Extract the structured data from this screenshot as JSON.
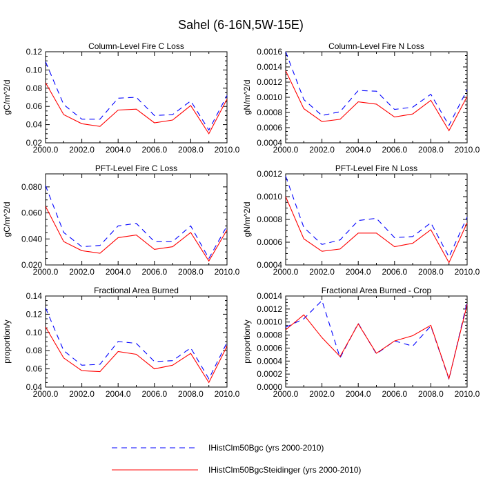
{
  "figure": {
    "title": "Sahel (6-16N,5W-15E)"
  },
  "series_styles": [
    {
      "key": "bgc",
      "color": "#0000ff",
      "dash": "8,6"
    },
    {
      "key": "steid",
      "color": "#ff0000",
      "dash": ""
    }
  ],
  "legend": {
    "items": [
      {
        "label": "IHistClm50Bgc (yrs 2000-2010)",
        "color": "#0000ff",
        "style": "dashed"
      },
      {
        "label": "IHistClm50BgcSteidinger (yrs 2000-2010)",
        "color": "#ff0000",
        "style": "solid"
      }
    ]
  },
  "chart_data": [
    {
      "type": "line",
      "title": "Column-Level Fire C Loss",
      "ylabel": "gC/m^2/d",
      "xlim": [
        2000,
        2010
      ],
      "ylim": [
        0.02,
        0.12
      ],
      "xticks": [
        2000,
        2002,
        2004,
        2006,
        2008,
        2010
      ],
      "xtick_labels": [
        "2000.0",
        "2002.0",
        "2004.0",
        "2006.0",
        "2008.0",
        "2010.0"
      ],
      "yticks": [
        0.02,
        0.04,
        0.06,
        0.08,
        0.1,
        0.12
      ],
      "ytick_labels": [
        "0.02",
        "0.04",
        "0.06",
        "0.08",
        "0.10",
        "0.12"
      ],
      "x": [
        2000,
        2001,
        2002,
        2003,
        2004,
        2005,
        2006,
        2007,
        2008,
        2009,
        2010
      ],
      "series": [
        {
          "values": [
            0.109,
            0.062,
            0.046,
            0.046,
            0.069,
            0.07,
            0.05,
            0.051,
            0.066,
            0.034,
            0.072
          ]
        },
        {
          "values": [
            0.086,
            0.051,
            0.041,
            0.038,
            0.056,
            0.057,
            0.042,
            0.045,
            0.061,
            0.03,
            0.068
          ]
        }
      ]
    },
    {
      "type": "line",
      "title": "Column-Level Fire N Loss",
      "ylabel": "gN/m^2/d",
      "xlim": [
        2000,
        2010
      ],
      "ylim": [
        0.0004,
        0.0016
      ],
      "xticks": [
        2000,
        2002,
        2004,
        2006,
        2008,
        2010
      ],
      "xtick_labels": [
        "2000.0",
        "2002.0",
        "2004.0",
        "2006.0",
        "2008.0",
        "2010.0"
      ],
      "yticks": [
        0.0004,
        0.0006,
        0.0008,
        0.001,
        0.0012,
        0.0014,
        0.0016
      ],
      "ytick_labels": [
        "0.0004",
        "0.0006",
        "0.0008",
        "0.0010",
        "0.0012",
        "0.0014",
        "0.0016"
      ],
      "x": [
        2000,
        2001,
        2002,
        2003,
        2004,
        2005,
        2006,
        2007,
        2008,
        2009,
        2010
      ],
      "series": [
        {
          "values": [
            0.0016,
            0.00097,
            0.00076,
            0.00081,
            0.00109,
            0.00108,
            0.00084,
            0.00087,
            0.00104,
            0.00063,
            0.0011
          ]
        },
        {
          "values": [
            0.00135,
            0.00085,
            0.00068,
            0.00071,
            0.00094,
            0.00091,
            0.00074,
            0.00078,
            0.00096,
            0.00056,
            0.00101
          ]
        }
      ]
    },
    {
      "type": "line",
      "title": "PFT-Level Fire C Loss",
      "ylabel": "gC/m^2/d",
      "xlim": [
        2000,
        2010
      ],
      "ylim": [
        0.02,
        0.09
      ],
      "xticks": [
        2000,
        2002,
        2004,
        2006,
        2008,
        2010
      ],
      "xtick_labels": [
        "2000.0",
        "2002.0",
        "2004.0",
        "2006.0",
        "2008.0",
        "2010.0"
      ],
      "yticks": [
        0.02,
        0.04,
        0.06,
        0.08
      ],
      "ytick_labels": [
        "0.020",
        "0.040",
        "0.060",
        "0.080"
      ],
      "x": [
        2000,
        2001,
        2002,
        2003,
        2004,
        2005,
        2006,
        2007,
        2008,
        2009,
        2010
      ],
      "series": [
        {
          "values": [
            0.081,
            0.045,
            0.034,
            0.035,
            0.05,
            0.052,
            0.038,
            0.038,
            0.05,
            0.025,
            0.05
          ]
        },
        {
          "values": [
            0.065,
            0.038,
            0.031,
            0.029,
            0.041,
            0.043,
            0.032,
            0.034,
            0.045,
            0.023,
            0.047
          ]
        }
      ]
    },
    {
      "type": "line",
      "title": "PFT-Level Fire N Loss",
      "ylabel": "gN/m^2/d",
      "xlim": [
        2000,
        2010
      ],
      "ylim": [
        0.0004,
        0.0012
      ],
      "xticks": [
        2000,
        2002,
        2004,
        2006,
        2008,
        2010
      ],
      "xtick_labels": [
        "2000.0",
        "2002.0",
        "2004.0",
        "2006.0",
        "2008.0",
        "2010.0"
      ],
      "yticks": [
        0.0004,
        0.0006,
        0.0008,
        0.001,
        0.0012
      ],
      "ytick_labels": [
        "0.0004",
        "0.0006",
        "0.0008",
        "0.0010",
        "0.0012"
      ],
      "x": [
        2000,
        2001,
        2002,
        2003,
        2004,
        2005,
        2006,
        2007,
        2008,
        2009,
        2010
      ],
      "series": [
        {
          "values": [
            0.00118,
            0.00073,
            0.00058,
            0.00062,
            0.00079,
            0.00081,
            0.00064,
            0.00065,
            0.00077,
            0.00047,
            0.00082
          ]
        },
        {
          "values": [
            0.001,
            0.00063,
            0.00052,
            0.00054,
            0.00068,
            0.00068,
            0.00056,
            0.00059,
            0.00071,
            0.00042,
            0.00077
          ]
        }
      ]
    },
    {
      "type": "line",
      "title": "Fractional Area Burned",
      "ylabel": "proportion/y",
      "xlim": [
        2000,
        2010
      ],
      "ylim": [
        0.04,
        0.14
      ],
      "xticks": [
        2000,
        2002,
        2004,
        2006,
        2008,
        2010
      ],
      "xtick_labels": [
        "2000.0",
        "2002.0",
        "2004.0",
        "2006.0",
        "2008.0",
        "2010.0"
      ],
      "yticks": [
        0.04,
        0.06,
        0.08,
        0.1,
        0.12,
        0.14
      ],
      "ytick_labels": [
        "0.04",
        "0.06",
        "0.08",
        "0.10",
        "0.12",
        "0.14"
      ],
      "x": [
        2000,
        2001,
        2002,
        2003,
        2004,
        2005,
        2006,
        2007,
        2008,
        2009,
        2010
      ],
      "series": [
        {
          "values": [
            0.127,
            0.08,
            0.064,
            0.065,
            0.09,
            0.088,
            0.068,
            0.069,
            0.083,
            0.049,
            0.089
          ]
        },
        {
          "values": [
            0.106,
            0.072,
            0.058,
            0.057,
            0.079,
            0.076,
            0.06,
            0.064,
            0.077,
            0.045,
            0.085
          ]
        }
      ]
    },
    {
      "type": "line",
      "title": "Fractional Area Burned - Crop",
      "ylabel": "proportion/y",
      "xlim": [
        2000,
        2010
      ],
      "ylim": [
        0,
        0.0014
      ],
      "xticks": [
        2000,
        2002,
        2004,
        2006,
        2008,
        2010
      ],
      "xtick_labels": [
        "2000.0",
        "2002.0",
        "2004.0",
        "2006.0",
        "2008.0",
        "2010.0"
      ],
      "yticks": [
        0,
        0.0002,
        0.0004,
        0.0006,
        0.0008,
        0.001,
        0.0012,
        0.0014
      ],
      "ytick_labels": [
        "0.0000",
        "0.0002",
        "0.0004",
        "0.0006",
        "0.0008",
        "0.0010",
        "0.0012",
        "0.0014"
      ],
      "x": [
        2000,
        2001,
        2002,
        2003,
        2004,
        2005,
        2006,
        2007,
        2008,
        2009,
        2010
      ],
      "series": [
        {
          "values": [
            0.00092,
            0.00105,
            0.00133,
            0.00045,
            0.00098,
            0.00051,
            0.00071,
            0.00063,
            0.00094,
            0.00012,
            0.00131
          ]
        },
        {
          "values": [
            0.00088,
            0.00111,
            0.00076,
            0.00047,
            0.00097,
            0.00052,
            0.00071,
            0.00079,
            0.00095,
            0.00013,
            0.00127
          ]
        }
      ]
    }
  ]
}
